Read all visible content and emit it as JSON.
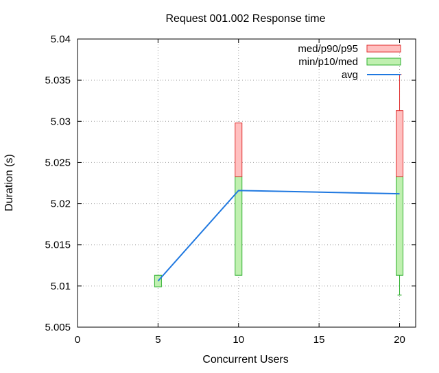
{
  "chart_data": {
    "type": "boxplot",
    "title": "Request 001.002 Response time",
    "xlabel": "Concurrent Users",
    "ylabel": "Duration (s)",
    "xlim": [
      0,
      21
    ],
    "ylim": [
      5.005,
      5.04
    ],
    "xticks": [
      "0",
      "5",
      "10",
      "15",
      "20"
    ],
    "yticks": [
      "5.005",
      "5.01",
      "5.015",
      "5.02",
      "5.025",
      "5.03",
      "5.035",
      "5.04"
    ],
    "grid": true,
    "legend_position": "top-right",
    "series": [
      {
        "name": "med/p90/p95",
        "color": "#ffc0c0",
        "stroke": "#e03030"
      },
      {
        "name": "min/p10/med",
        "color": "#c0f0b0",
        "stroke": "#30b030"
      },
      {
        "name": "avg",
        "color": "#1f78e0"
      }
    ],
    "boxes": [
      {
        "x": 5,
        "min": 5.0099,
        "p10": 5.0099,
        "med": 5.0113,
        "p90": 5.0113,
        "p95": 5.0113
      },
      {
        "x": 10,
        "min": 5.0113,
        "p10": 5.0113,
        "med": 5.0233,
        "p90": 5.0298,
        "p95": 5.0298
      },
      {
        "x": 20,
        "min": 5.0089,
        "p10": 5.0113,
        "med": 5.0233,
        "p90": 5.0313,
        "p95": 5.0357
      }
    ],
    "avg": {
      "x": [
        5,
        10,
        20
      ],
      "y": [
        5.0106,
        5.0216,
        5.0212
      ]
    }
  }
}
